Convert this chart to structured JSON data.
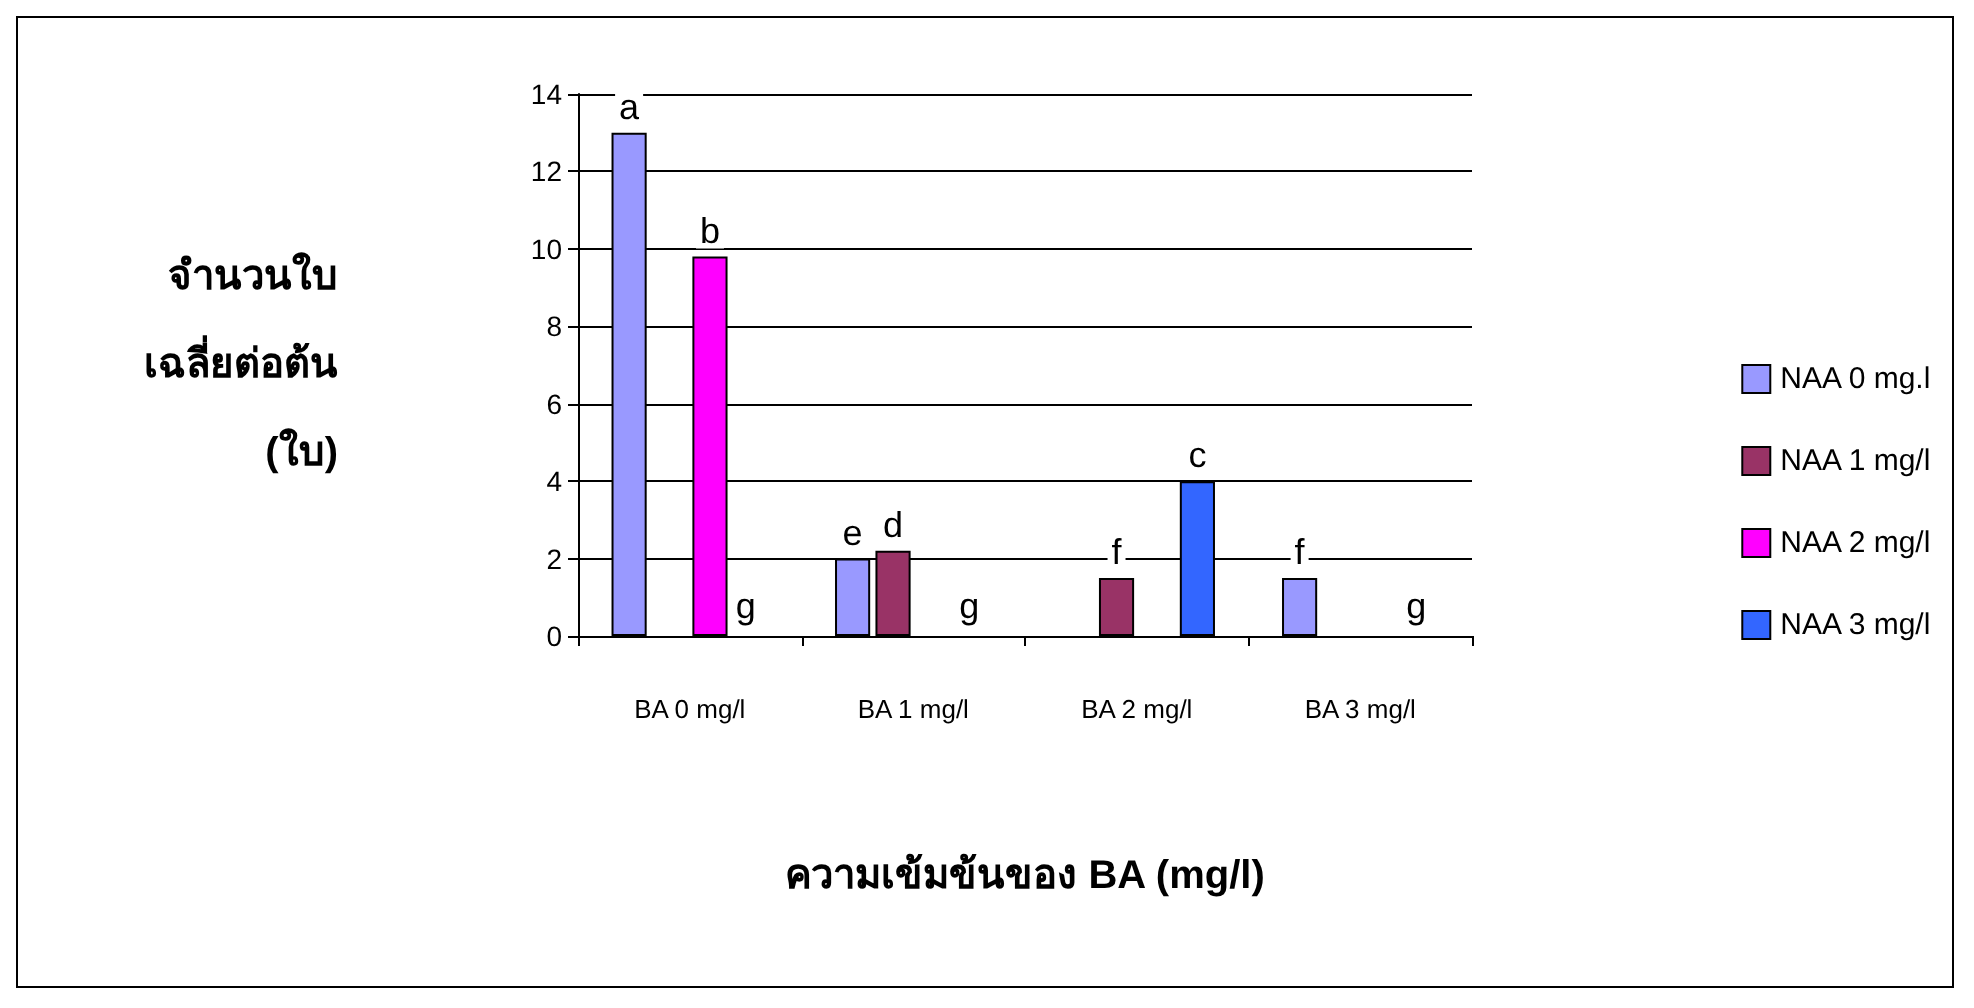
{
  "chart_data": {
    "type": "bar",
    "xlabel": "ความเข้มข้นของ BA (mg/l)",
    "ylabel": "จำนวนใบ\nเฉลี่ยต่อต้น\n(ใบ)",
    "categories": [
      "BA 0 mg/l",
      "BA 1 mg/l",
      "BA 2 mg/l",
      "BA 3 mg/l"
    ],
    "series": [
      {
        "name": "NAA 0 mg.l",
        "color": "#9999ff",
        "values": [
          13,
          2.0,
          0,
          1.5
        ],
        "value_labels": [
          "a",
          "e",
          null,
          "f"
        ]
      },
      {
        "name": "NAA 1 mg/l",
        "color": "#993366",
        "values": [
          0,
          2.2,
          1.5,
          0
        ],
        "value_labels": [
          null,
          "d",
          "f",
          null
        ]
      },
      {
        "name": "NAA 2 mg/l",
        "color": "#ff00ff",
        "values": [
          9.8,
          0,
          0,
          0
        ],
        "value_labels": [
          "b",
          null,
          null,
          null
        ]
      },
      {
        "name": "NAA 3 mg/l",
        "color": "#3366ff",
        "values": [
          0,
          0,
          4.0,
          0
        ],
        "value_labels": [
          null,
          null,
          "c",
          null
        ]
      }
    ],
    "annotations": [
      {
        "text": "g",
        "x": "BA 0 mg/l",
        "y": 0
      },
      {
        "text": "g",
        "x": "BA 1 mg/l",
        "y": 0
      },
      {
        "text": "g",
        "x": "BA 3 mg/l",
        "y": 0
      }
    ],
    "ylim": [
      0,
      14
    ],
    "yticks": [
      0,
      2,
      4,
      6,
      8,
      10,
      12,
      14
    ],
    "grid": "y",
    "legend": "right"
  }
}
